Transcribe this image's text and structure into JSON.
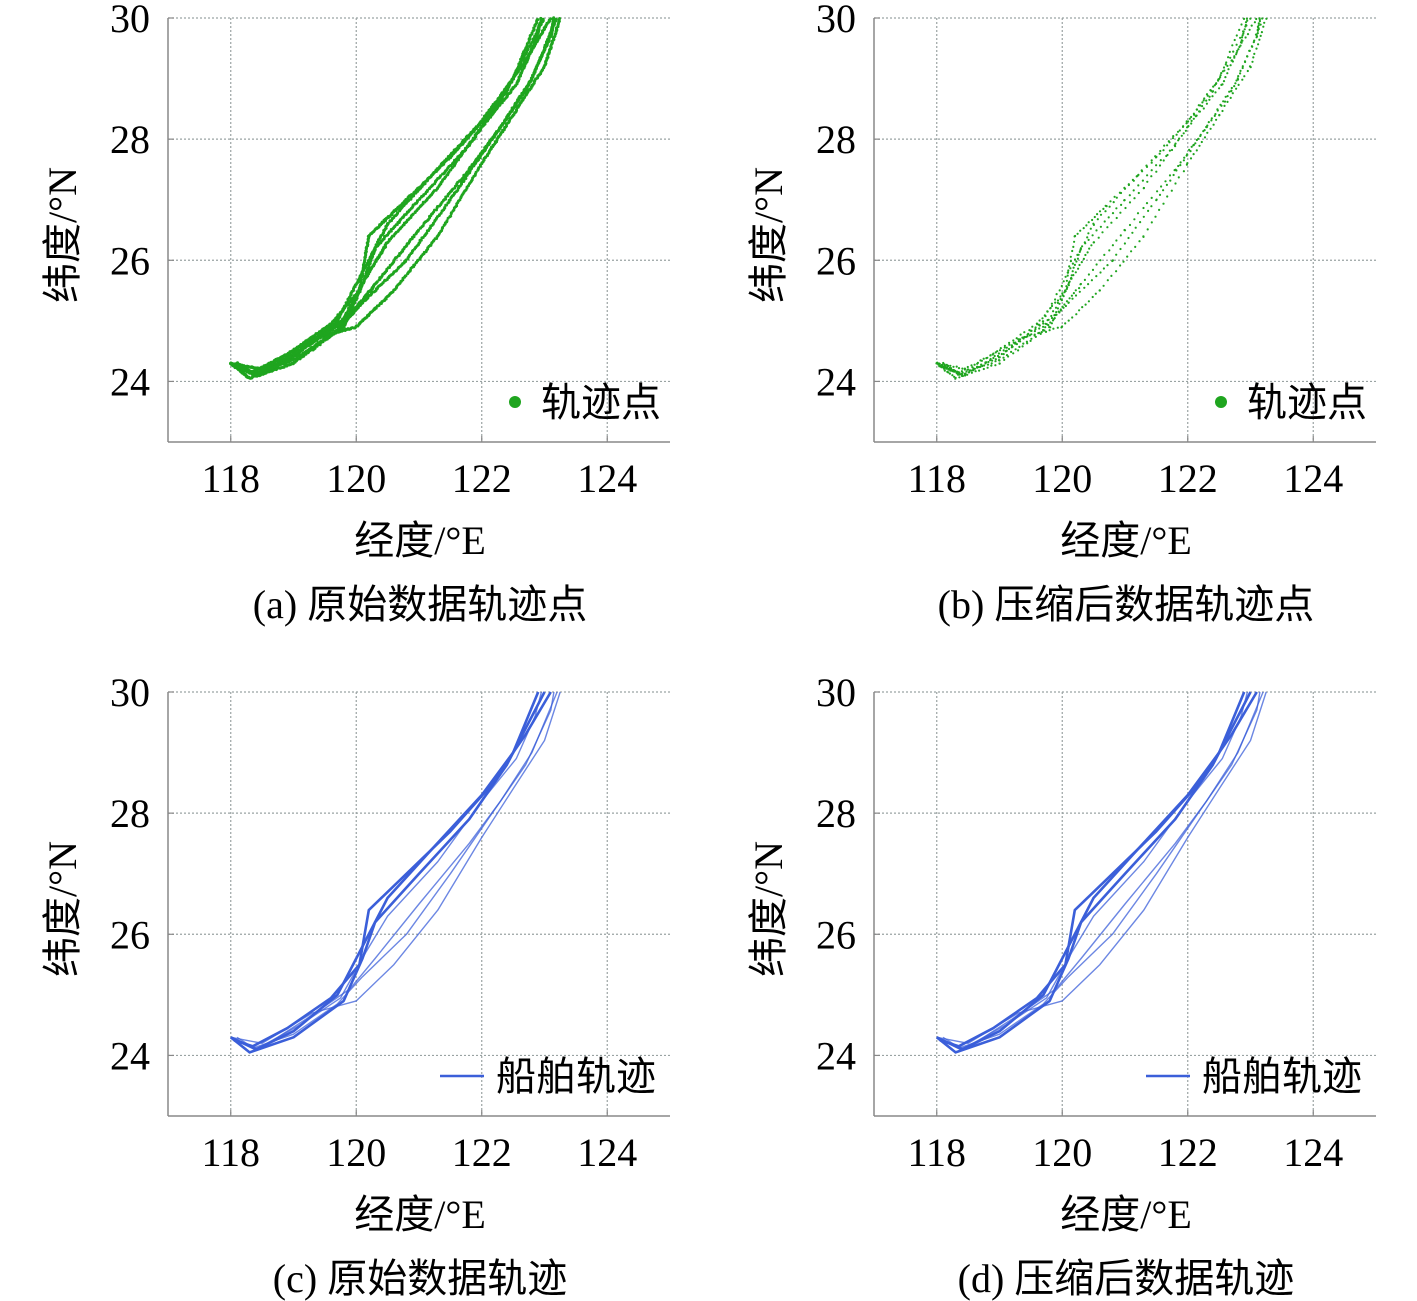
{
  "colors": {
    "points": "#1fa51f",
    "lines": "#3b5fd9",
    "grid": "#9aa3a3",
    "axis": "#888888"
  },
  "chart_data": [
    {
      "id": "a",
      "type": "scatter",
      "caption": "(a) 原始数据轨迹点",
      "xlabel": "经度/°E",
      "ylabel": "纬度/°N",
      "xlim": [
        117,
        125
      ],
      "ylim": [
        23,
        30
      ],
      "xticks": [
        "118",
        "120",
        "122",
        "124"
      ],
      "yticks": [
        "24",
        "26",
        "28",
        "30"
      ],
      "grid": true,
      "legend": {
        "label": "轨迹点",
        "marker": "point",
        "position": "bottom-right"
      },
      "render": "dense-points",
      "color_key": "points"
    },
    {
      "id": "b",
      "type": "scatter",
      "caption": "(b) 压缩后数据轨迹点",
      "xlabel": "经度/°E",
      "ylabel": "纬度/°N",
      "xlim": [
        117,
        125
      ],
      "ylim": [
        23,
        30
      ],
      "xticks": [
        "118",
        "120",
        "122",
        "124"
      ],
      "yticks": [
        "24",
        "26",
        "28",
        "30"
      ],
      "grid": true,
      "legend": {
        "label": "轨迹点",
        "marker": "point",
        "position": "bottom-right"
      },
      "render": "sparse-points",
      "color_key": "points"
    },
    {
      "id": "c",
      "type": "line",
      "caption": "(c) 原始数据轨迹",
      "xlabel": "经度/°E",
      "ylabel": "纬度/°N",
      "xlim": [
        117,
        125
      ],
      "ylim": [
        23,
        30
      ],
      "xticks": [
        "118",
        "120",
        "122",
        "124"
      ],
      "yticks": [
        "24",
        "26",
        "28",
        "30"
      ],
      "grid": true,
      "legend": {
        "label": "船舶轨迹",
        "marker": "line",
        "position": "bottom-right"
      },
      "render": "lines",
      "color_key": "lines"
    },
    {
      "id": "d",
      "type": "line",
      "caption": "(d) 压缩后数据轨迹",
      "xlabel": "经度/°E",
      "ylabel": "纬度/°N",
      "xlim": [
        117,
        125
      ],
      "ylim": [
        23,
        30
      ],
      "xticks": [
        "118",
        "120",
        "122",
        "124"
      ],
      "yticks": [
        "24",
        "26",
        "28",
        "30"
      ],
      "grid": true,
      "legend": {
        "label": "船舶轨迹",
        "marker": "line",
        "position": "bottom-right"
      },
      "render": "lines",
      "color_key": "lines"
    }
  ],
  "tracks": [
    {
      "points": [
        [
          118.0,
          24.3
        ],
        [
          118.4,
          24.1
        ],
        [
          119.0,
          24.4
        ],
        [
          119.7,
          25.0
        ],
        [
          120.1,
          25.8
        ],
        [
          120.5,
          26.6
        ],
        [
          121.2,
          27.4
        ],
        [
          122.0,
          28.3
        ],
        [
          122.5,
          29.0
        ],
        [
          122.9,
          30.0
        ]
      ]
    },
    {
      "points": [
        [
          118.0,
          24.3
        ],
        [
          118.3,
          24.05
        ],
        [
          119.0,
          24.3
        ],
        [
          119.8,
          24.9
        ],
        [
          120.1,
          25.6
        ],
        [
          120.3,
          26.2
        ],
        [
          121.0,
          27.0
        ],
        [
          121.8,
          27.9
        ],
        [
          122.4,
          28.8
        ],
        [
          123.0,
          30.0
        ]
      ]
    },
    {
      "points": [
        [
          118.05,
          24.25
        ],
        [
          118.35,
          24.15
        ],
        [
          118.9,
          24.45
        ],
        [
          119.6,
          24.95
        ],
        [
          120.05,
          25.5
        ],
        [
          120.2,
          26.4
        ],
        [
          120.7,
          26.9
        ],
        [
          121.5,
          27.7
        ],
        [
          122.1,
          28.4
        ],
        [
          122.7,
          29.3
        ],
        [
          123.1,
          30.0
        ]
      ]
    },
    {
      "points": [
        [
          118.0,
          24.3
        ],
        [
          118.45,
          24.1
        ],
        [
          119.2,
          24.6
        ],
        [
          119.9,
          25.1
        ],
        [
          120.3,
          25.6
        ],
        [
          121.0,
          26.5
        ],
        [
          121.8,
          27.5
        ],
        [
          122.3,
          28.2
        ],
        [
          122.8,
          29.0
        ],
        [
          123.2,
          30.0
        ]
      ]
    },
    {
      "points": [
        [
          118.0,
          24.3
        ],
        [
          118.5,
          24.2
        ],
        [
          119.3,
          24.7
        ],
        [
          120.0,
          24.9
        ],
        [
          120.6,
          25.5
        ],
        [
          121.3,
          26.4
        ],
        [
          122.0,
          27.6
        ],
        [
          122.5,
          28.4
        ],
        [
          123.0,
          29.2
        ],
        [
          123.25,
          30.0
        ]
      ]
    },
    {
      "points": [
        [
          118.1,
          24.3
        ],
        [
          118.4,
          24.1
        ],
        [
          119.1,
          24.5
        ],
        [
          119.75,
          24.95
        ],
        [
          120.15,
          25.7
        ],
        [
          120.5,
          26.3
        ],
        [
          121.3,
          27.2
        ],
        [
          122.0,
          28.2
        ],
        [
          122.55,
          28.9
        ],
        [
          122.85,
          29.6
        ],
        [
          122.95,
          30.0
        ]
      ]
    },
    {
      "points": [
        [
          118.0,
          24.3
        ],
        [
          118.35,
          24.12
        ],
        [
          119.0,
          24.35
        ],
        [
          119.7,
          24.85
        ],
        [
          120.1,
          25.3
        ],
        [
          120.8,
          26.0
        ],
        [
          121.5,
          27.0
        ],
        [
          122.1,
          27.9
        ],
        [
          122.7,
          28.8
        ],
        [
          123.1,
          29.7
        ],
        [
          123.15,
          30.0
        ]
      ]
    }
  ]
}
